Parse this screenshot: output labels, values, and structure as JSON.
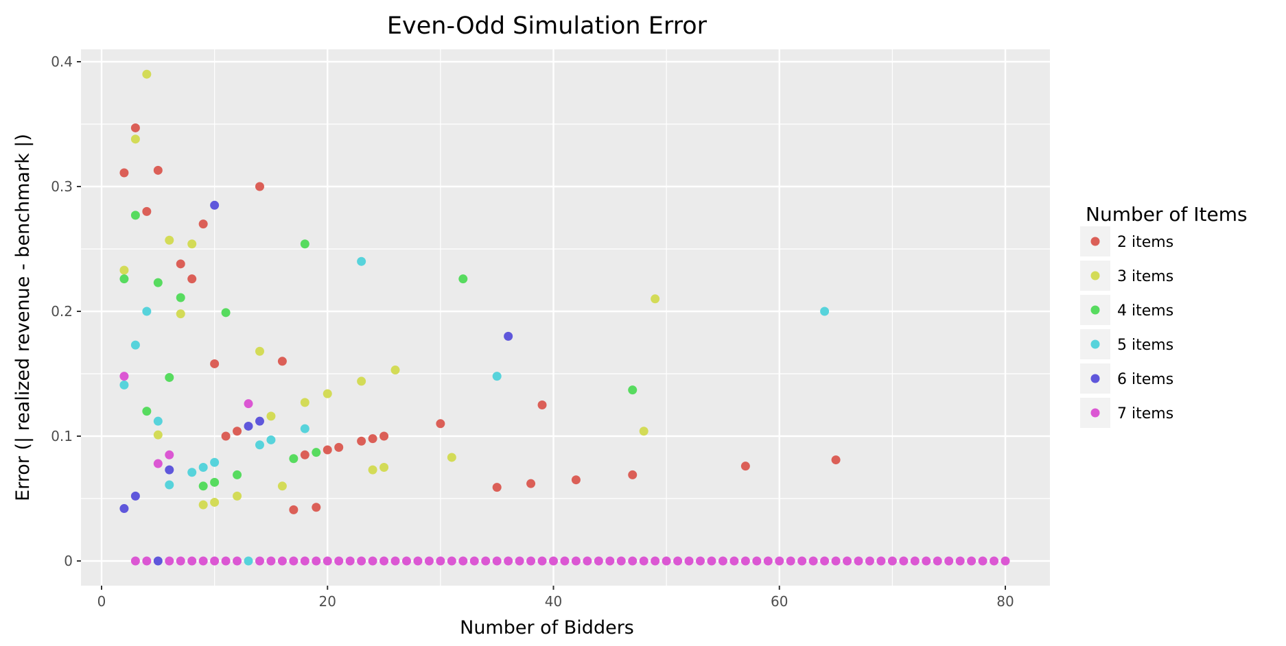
{
  "chart_data": {
    "type": "scatter",
    "title": "Even-Odd Simulation Error",
    "xlabel": "Number of Bidders",
    "ylabel": "Error (| realized revenue - benchmark |)",
    "xlim": [
      -2,
      84
    ],
    "ylim": [
      -0.02,
      0.41
    ],
    "x_ticks": [
      0,
      20,
      40,
      60,
      80
    ],
    "y_ticks": [
      0,
      0.1,
      0.2,
      0.3,
      0.4
    ],
    "x_tick_labels": [
      "0",
      "20",
      "40",
      "60",
      "80"
    ],
    "y_tick_labels": [
      "0",
      "0.1",
      "0.2",
      "0.3",
      "0.4"
    ],
    "grid": true,
    "legend": {
      "title": "Number of Items",
      "position": "right"
    },
    "series": [
      {
        "name": "2 items",
        "color": "#db5f57",
        "points": [
          [
            2,
            0.311
          ],
          [
            3,
            0.347
          ],
          [
            4,
            0.28
          ],
          [
            5,
            0.313
          ],
          [
            7,
            0.238
          ],
          [
            8,
            0.226
          ],
          [
            9,
            0.27
          ],
          [
            10,
            0.158
          ],
          [
            11,
            0.1
          ],
          [
            12,
            0.104
          ],
          [
            14,
            0.3
          ],
          [
            16,
            0.16
          ],
          [
            17,
            0.041
          ],
          [
            18,
            0.085
          ],
          [
            19,
            0.043
          ],
          [
            20,
            0.089
          ],
          [
            21,
            0.091
          ],
          [
            23,
            0.096
          ],
          [
            24,
            0.098
          ],
          [
            25,
            0.1
          ],
          [
            30,
            0.11
          ],
          [
            35,
            0.059
          ],
          [
            38,
            0.062
          ],
          [
            39,
            0.125
          ],
          [
            42,
            0.065
          ],
          [
            47,
            0.069
          ],
          [
            57,
            0.076
          ],
          [
            65,
            0.081
          ]
        ]
      },
      {
        "name": "3 items",
        "color": "#d3db57",
        "points": [
          [
            2,
            0.233
          ],
          [
            3,
            0.338
          ],
          [
            4,
            0.39
          ],
          [
            5,
            0.101
          ],
          [
            6,
            0.257
          ],
          [
            7,
            0.198
          ],
          [
            8,
            0.254
          ],
          [
            9,
            0.045
          ],
          [
            10,
            0.047
          ],
          [
            12,
            0.052
          ],
          [
            14,
            0.168
          ],
          [
            15,
            0.116
          ],
          [
            16,
            0.06
          ],
          [
            18,
            0.127
          ],
          [
            20,
            0.134
          ],
          [
            23,
            0.144
          ],
          [
            24,
            0.073
          ],
          [
            25,
            0.075
          ],
          [
            26,
            0.153
          ],
          [
            31,
            0.083
          ],
          [
            48,
            0.104
          ],
          [
            49,
            0.21
          ]
        ]
      },
      {
        "name": "4 items",
        "color": "#57db5f",
        "points": [
          [
            2,
            0.226
          ],
          [
            3,
            0.277
          ],
          [
            4,
            0.12
          ],
          [
            5,
            0.223
          ],
          [
            6,
            0.147
          ],
          [
            7,
            0.211
          ],
          [
            9,
            0.06
          ],
          [
            10,
            0.063
          ],
          [
            11,
            0.199
          ],
          [
            12,
            0.069
          ],
          [
            17,
            0.082
          ],
          [
            18,
            0.254
          ],
          [
            19,
            0.087
          ],
          [
            32,
            0.226
          ],
          [
            47,
            0.137
          ]
        ]
      },
      {
        "name": "5 items",
        "color": "#57d3db",
        "points": [
          [
            2,
            0.141
          ],
          [
            3,
            0.173
          ],
          [
            4,
            0.2
          ],
          [
            5,
            0.112
          ],
          [
            6,
            0.061
          ],
          [
            8,
            0.071
          ],
          [
            9,
            0.075
          ],
          [
            10,
            0.079
          ],
          [
            13,
            0
          ],
          [
            14,
            0.093
          ],
          [
            15,
            0.097
          ],
          [
            18,
            0.106
          ],
          [
            23,
            0.24
          ],
          [
            35,
            0.148
          ],
          [
            64,
            0.2
          ]
        ]
      },
      {
        "name": "6 items",
        "color": "#5f57db",
        "points": [
          [
            2,
            0.042
          ],
          [
            3,
            0.052
          ],
          [
            5,
            0
          ],
          [
            6,
            0.073
          ],
          [
            10,
            0.285
          ],
          [
            13,
            0.108
          ],
          [
            14,
            0.112
          ],
          [
            36,
            0.18
          ]
        ]
      },
      {
        "name": "7 items",
        "color": "#db57d3",
        "points": [
          [
            2,
            0.148
          ],
          [
            5,
            0.078
          ],
          [
            6,
            0.085
          ],
          [
            13,
            0.126
          ],
          [
            3,
            0
          ],
          [
            4,
            0
          ],
          [
            6,
            0
          ],
          [
            7,
            0
          ],
          [
            8,
            0
          ],
          [
            9,
            0
          ],
          [
            10,
            0
          ],
          [
            11,
            0
          ],
          [
            12,
            0
          ],
          [
            14,
            0
          ],
          [
            15,
            0
          ],
          [
            16,
            0
          ],
          [
            17,
            0
          ],
          [
            18,
            0
          ],
          [
            19,
            0
          ],
          [
            20,
            0
          ],
          [
            21,
            0
          ],
          [
            22,
            0
          ],
          [
            23,
            0
          ],
          [
            24,
            0
          ],
          [
            25,
            0
          ],
          [
            26,
            0
          ],
          [
            27,
            0
          ],
          [
            28,
            0
          ],
          [
            29,
            0
          ],
          [
            30,
            0
          ],
          [
            31,
            0
          ],
          [
            32,
            0
          ],
          [
            33,
            0
          ],
          [
            34,
            0
          ],
          [
            35,
            0
          ],
          [
            36,
            0
          ],
          [
            37,
            0
          ],
          [
            38,
            0
          ],
          [
            39,
            0
          ],
          [
            40,
            0
          ],
          [
            41,
            0
          ],
          [
            42,
            0
          ],
          [
            43,
            0
          ],
          [
            44,
            0
          ],
          [
            45,
            0
          ],
          [
            46,
            0
          ],
          [
            47,
            0
          ],
          [
            48,
            0
          ],
          [
            49,
            0
          ],
          [
            50,
            0
          ],
          [
            51,
            0
          ],
          [
            52,
            0
          ],
          [
            53,
            0
          ],
          [
            54,
            0
          ],
          [
            55,
            0
          ],
          [
            56,
            0
          ],
          [
            57,
            0
          ],
          [
            58,
            0
          ],
          [
            59,
            0
          ],
          [
            60,
            0
          ],
          [
            61,
            0
          ],
          [
            62,
            0
          ],
          [
            63,
            0
          ],
          [
            64,
            0
          ],
          [
            65,
            0
          ],
          [
            66,
            0
          ],
          [
            67,
            0
          ],
          [
            68,
            0
          ],
          [
            69,
            0
          ],
          [
            70,
            0
          ],
          [
            71,
            0
          ],
          [
            72,
            0
          ],
          [
            73,
            0
          ],
          [
            74,
            0
          ],
          [
            75,
            0
          ],
          [
            76,
            0
          ],
          [
            77,
            0
          ],
          [
            78,
            0
          ],
          [
            79,
            0
          ],
          [
            80,
            0
          ]
        ]
      }
    ]
  },
  "colors": {
    "panel_background": "#ebebeb",
    "grid_major": "#ffffff",
    "legend_key_background": "#f2f2f2"
  }
}
